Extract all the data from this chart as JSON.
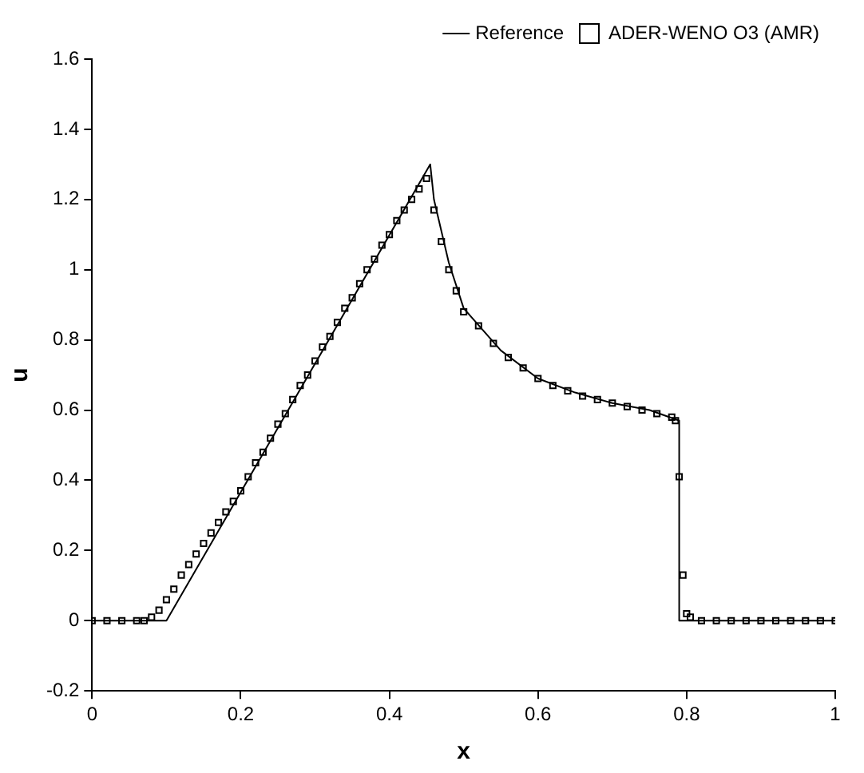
{
  "chart_data": {
    "type": "line",
    "xlabel": "x",
    "ylabel": "u",
    "xlim": [
      0,
      1
    ],
    "xticks": [
      0,
      0.2,
      0.4,
      0.6,
      0.8,
      1
    ],
    "ylim": [
      -0.2,
      1.6
    ],
    "yticks": [
      -0.2,
      0,
      0.2,
      0.4,
      0.6,
      0.8,
      1,
      1.2,
      1.4,
      1.6
    ],
    "grid": false,
    "legend": "top right",
    "series": [
      {
        "name": "Reference",
        "type": "line",
        "color": "#000000",
        "marker": "none",
        "line_style": "solid",
        "x": [
          0,
          0.1,
          0.455,
          0.46,
          0.48,
          0.5,
          0.55,
          0.6,
          0.65,
          0.7,
          0.75,
          0.79,
          0.79,
          1
        ],
        "values": [
          0,
          0,
          1.3,
          1.2,
          1.02,
          0.89,
          0.77,
          0.69,
          0.65,
          0.62,
          0.6,
          0.57,
          0,
          0
        ]
      },
      {
        "name": "ADER-WENO O3 (AMR)",
        "type": "scatter",
        "color": "#000000",
        "marker": "square",
        "x": [
          0,
          0.02,
          0.04,
          0.06,
          0.07,
          0.08,
          0.09,
          0.1,
          0.11,
          0.12,
          0.13,
          0.14,
          0.15,
          0.16,
          0.17,
          0.18,
          0.19,
          0.2,
          0.21,
          0.22,
          0.23,
          0.24,
          0.25,
          0.26,
          0.27,
          0.28,
          0.29,
          0.3,
          0.31,
          0.32,
          0.33,
          0.34,
          0.35,
          0.36,
          0.37,
          0.38,
          0.39,
          0.4,
          0.41,
          0.42,
          0.43,
          0.44,
          0.45,
          0.46,
          0.47,
          0.48,
          0.49,
          0.5,
          0.52,
          0.54,
          0.56,
          0.58,
          0.6,
          0.62,
          0.64,
          0.66,
          0.68,
          0.7,
          0.72,
          0.74,
          0.76,
          0.78,
          0.785,
          0.79,
          0.795,
          0.8,
          0.805,
          0.82,
          0.84,
          0.86,
          0.88,
          0.9,
          0.92,
          0.94,
          0.96,
          0.98,
          1
        ],
        "values": [
          0,
          0,
          0,
          0,
          0,
          0.01,
          0.03,
          0.06,
          0.09,
          0.13,
          0.16,
          0.19,
          0.22,
          0.25,
          0.28,
          0.31,
          0.34,
          0.37,
          0.41,
          0.45,
          0.48,
          0.52,
          0.56,
          0.59,
          0.63,
          0.67,
          0.7,
          0.74,
          0.78,
          0.81,
          0.85,
          0.89,
          0.92,
          0.96,
          1.0,
          1.03,
          1.07,
          1.1,
          1.14,
          1.17,
          1.2,
          1.23,
          1.26,
          1.17,
          1.08,
          1.0,
          0.94,
          0.88,
          0.84,
          0.79,
          0.75,
          0.72,
          0.69,
          0.67,
          0.655,
          0.64,
          0.63,
          0.62,
          0.61,
          0.6,
          0.59,
          0.58,
          0.57,
          0.41,
          0.13,
          0.02,
          0.01,
          0,
          0,
          0,
          0,
          0,
          0,
          0,
          0,
          0,
          0
        ]
      }
    ]
  }
}
